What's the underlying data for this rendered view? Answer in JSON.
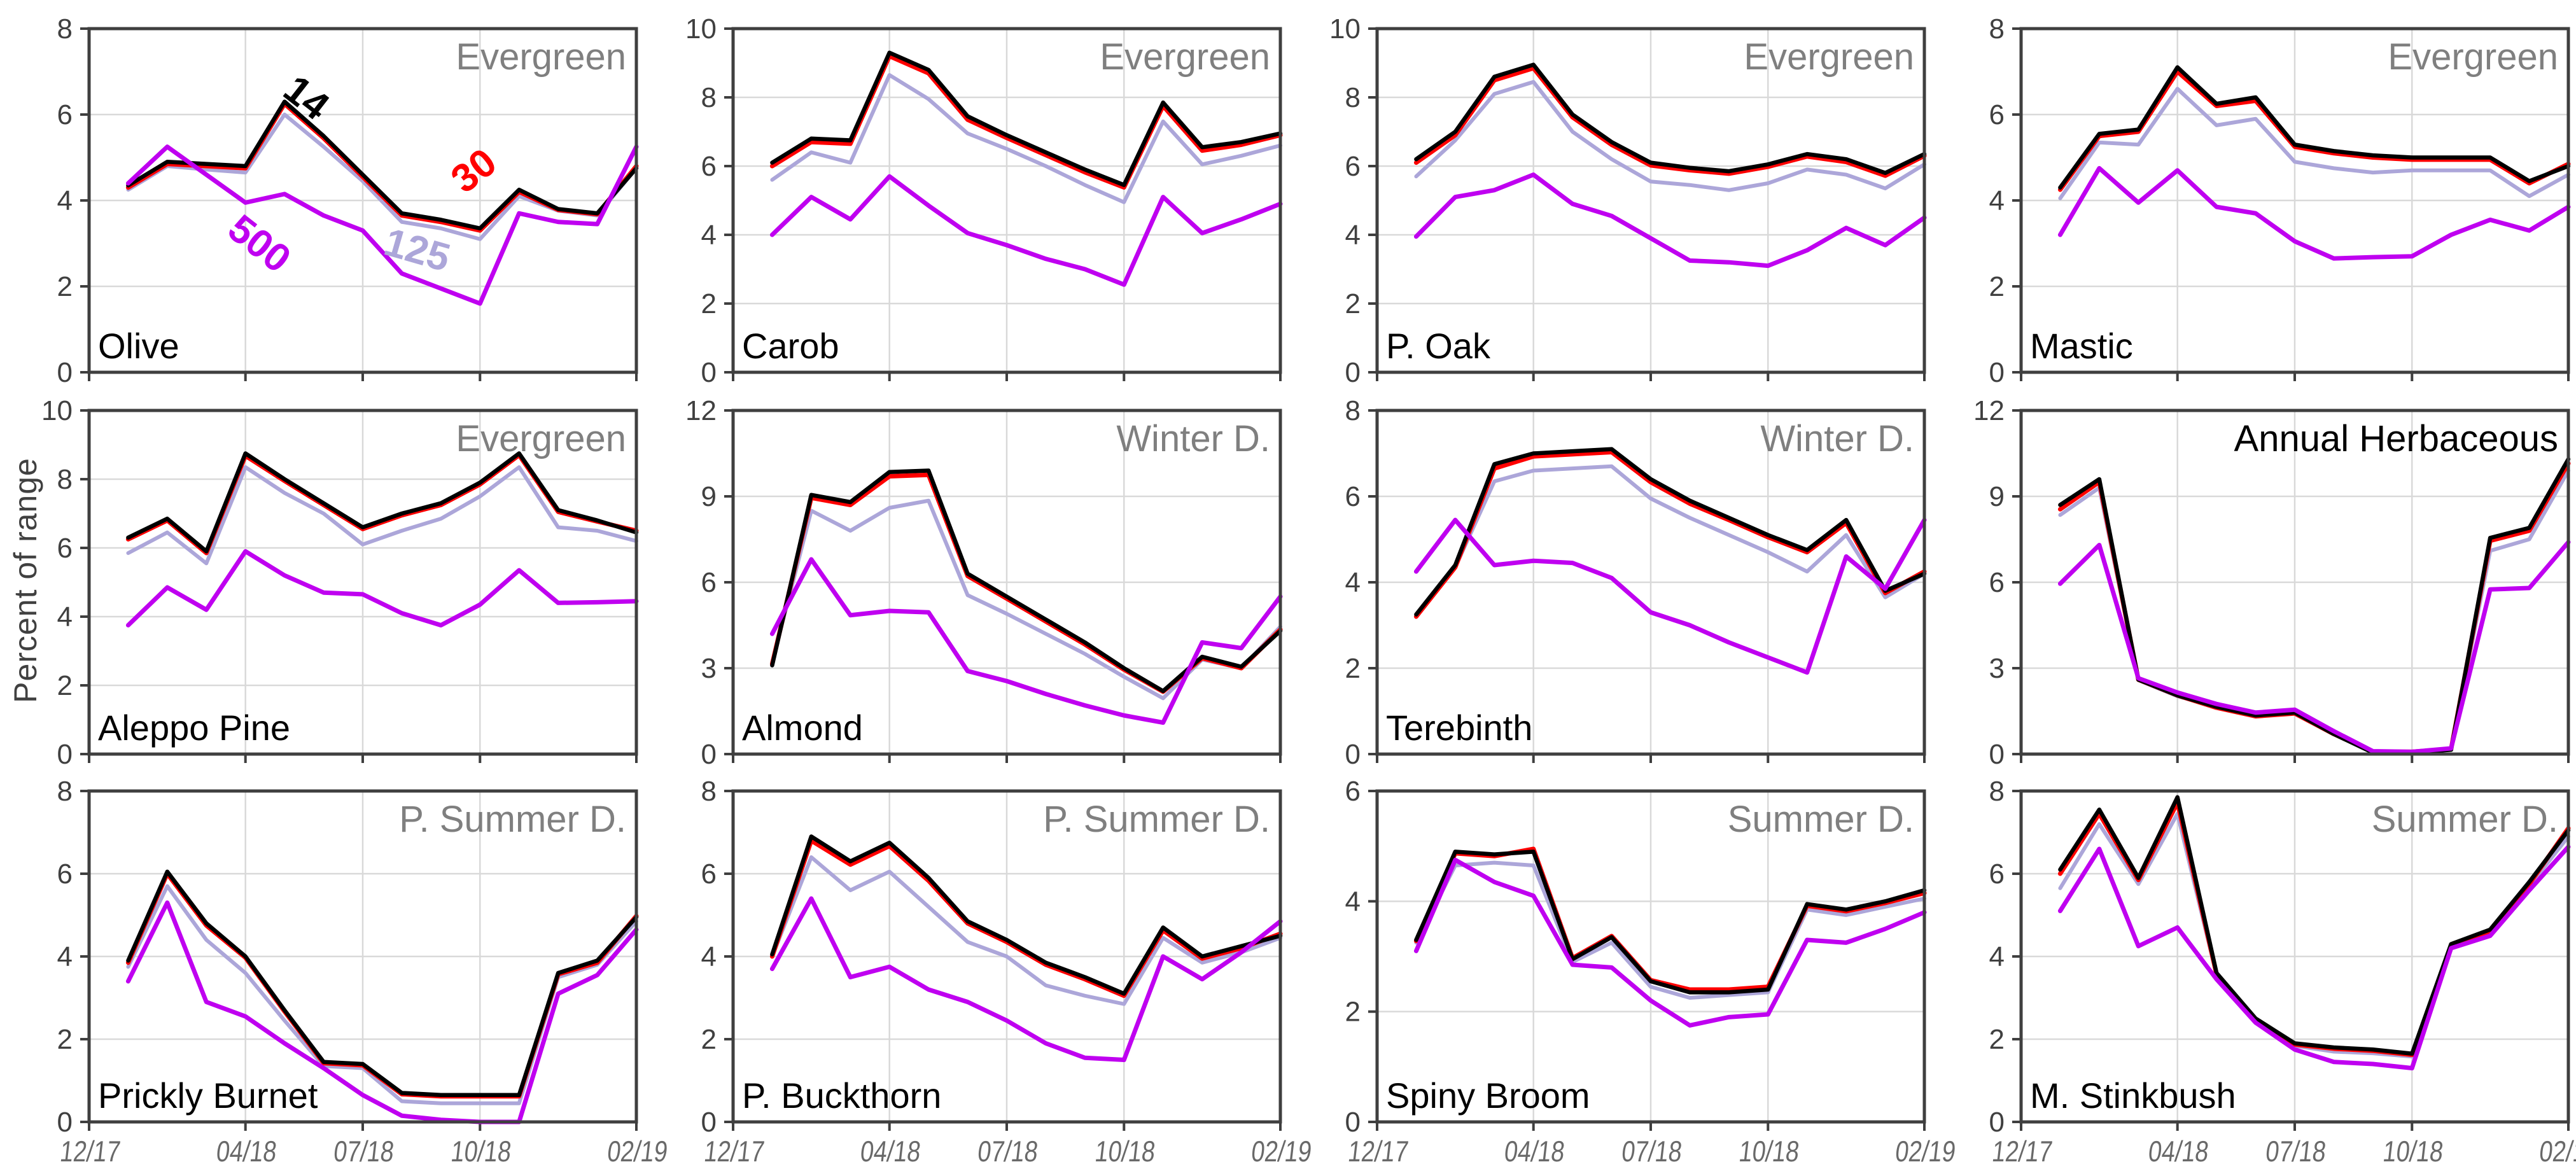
{
  "figure": {
    "ylabel": "Percent  of range"
  },
  "colors": {
    "grid": "#D9D9D9",
    "axis": "#3F3F3F",
    "y_tick_label": "#404040",
    "x_tick_label": "#696969",
    "category_label": "#7F7F7F",
    "species_label": "#000000",
    "background": "#FFFFFF"
  },
  "x_axis": {
    "tick_labels": [
      "12/17",
      "04/18",
      "07/18",
      "10/18",
      "02/19"
    ],
    "tick_months": [
      0,
      4,
      7,
      10,
      14
    ],
    "gridline_months": [
      4,
      7,
      10
    ],
    "n_months": 14
  },
  "series_meta": [
    {
      "key": "s125",
      "name": "125",
      "color": "#ACA6D9",
      "width": 6
    },
    {
      "key": "s30",
      "name": "30",
      "color": "#FF0000",
      "width": 7
    },
    {
      "key": "s14",
      "name": "14",
      "color": "#000000",
      "width": 6.5
    },
    {
      "key": "s500",
      "name": "500",
      "color": "#BF00F0",
      "width": 7
    }
  ],
  "chart_data": [
    {
      "type": "line",
      "species": "Olive",
      "slug": "olive",
      "category": "Evergreen",
      "category_color": "#7F7F7F",
      "ylim": [
        0,
        8
      ],
      "yticks": [
        0,
        2,
        4,
        6,
        8
      ],
      "series": {
        "s14": [
          4.35,
          4.9,
          4.85,
          4.8,
          6.3,
          5.5,
          4.6,
          3.7,
          3.55,
          3.35,
          4.25,
          3.8,
          3.7,
          4.75
        ],
        "s30": [
          4.3,
          4.85,
          4.8,
          4.75,
          6.25,
          5.45,
          4.55,
          3.65,
          3.5,
          3.3,
          4.2,
          3.78,
          3.68,
          4.8
        ],
        "s125": [
          4.25,
          4.8,
          4.72,
          4.65,
          6.0,
          5.25,
          4.45,
          3.5,
          3.35,
          3.1,
          4.1,
          3.76,
          3.65,
          4.75
        ],
        "s500": [
          4.4,
          5.25,
          4.6,
          3.95,
          4.15,
          3.65,
          3.3,
          2.3,
          1.95,
          1.6,
          3.7,
          3.5,
          3.45,
          5.25
        ]
      },
      "annotations": [
        {
          "text": "14",
          "color": "#000000",
          "month": 5.35,
          "value": 6.15,
          "rotate": 38,
          "size": 62
        },
        {
          "text": "30",
          "color": "#FF0000",
          "month": 10.05,
          "value": 4.45,
          "rotate": -38,
          "size": 62
        },
        {
          "text": "500",
          "color": "#BF00F0",
          "month": 4.15,
          "value": 2.75,
          "rotate": 38,
          "size": 62
        },
        {
          "text": "125",
          "color": "#ACA6D9",
          "month": 8.3,
          "value": 2.55,
          "rotate": 16,
          "size": 62
        }
      ]
    },
    {
      "type": "line",
      "species": "Carob",
      "slug": "carob",
      "category": "Evergreen",
      "category_color": "#7F7F7F",
      "ylim": [
        0,
        10
      ],
      "yticks": [
        0,
        2,
        4,
        6,
        8,
        10
      ],
      "series": {
        "s14": [
          6.1,
          6.8,
          6.75,
          9.3,
          8.8,
          7.45,
          6.9,
          6.4,
          5.9,
          5.45,
          7.85,
          6.55,
          6.7,
          6.95
        ],
        "s30": [
          6.0,
          6.7,
          6.65,
          9.2,
          8.7,
          7.35,
          6.82,
          6.32,
          5.82,
          5.38,
          7.75,
          6.45,
          6.62,
          6.9
        ],
        "s125": [
          5.6,
          6.4,
          6.1,
          8.65,
          7.95,
          6.95,
          6.5,
          6.0,
          5.45,
          4.95,
          7.3,
          6.05,
          6.3,
          6.6
        ],
        "s500": [
          4.0,
          5.1,
          4.45,
          5.7,
          4.85,
          4.05,
          3.7,
          3.3,
          3.0,
          2.55,
          5.1,
          4.05,
          4.45,
          4.9
        ]
      }
    },
    {
      "type": "line",
      "species": "P. Oak",
      "slug": "p-oak",
      "category": "Evergreen",
      "category_color": "#7F7F7F",
      "ylim": [
        0,
        10
      ],
      "yticks": [
        0,
        2,
        4,
        6,
        8,
        10
      ],
      "series": {
        "s14": [
          6.2,
          7.0,
          8.6,
          8.95,
          7.5,
          6.7,
          6.1,
          5.95,
          5.85,
          6.05,
          6.35,
          6.2,
          5.8,
          6.35
        ],
        "s30": [
          6.1,
          6.9,
          8.5,
          8.85,
          7.42,
          6.62,
          6.02,
          5.88,
          5.78,
          5.98,
          6.28,
          6.12,
          5.72,
          6.3
        ],
        "s125": [
          5.7,
          6.75,
          8.1,
          8.45,
          7.0,
          6.2,
          5.55,
          5.45,
          5.3,
          5.5,
          5.9,
          5.75,
          5.35,
          6.05
        ],
        "s500": [
          3.95,
          5.1,
          5.3,
          5.75,
          4.9,
          4.55,
          3.9,
          3.25,
          3.2,
          3.1,
          3.55,
          4.2,
          3.7,
          4.5
        ]
      }
    },
    {
      "type": "line",
      "species": "Mastic",
      "slug": "mastic",
      "category": "Evergreen",
      "category_color": "#7F7F7F",
      "ylim": [
        0,
        8
      ],
      "yticks": [
        0,
        2,
        4,
        6,
        8
      ],
      "series": {
        "s14": [
          4.3,
          5.55,
          5.65,
          7.1,
          6.25,
          6.4,
          5.3,
          5.15,
          5.05,
          5.0,
          5.0,
          5.0,
          4.45,
          4.8
        ],
        "s30": [
          4.25,
          5.5,
          5.6,
          7.0,
          6.2,
          6.32,
          5.25,
          5.1,
          5.0,
          4.95,
          4.95,
          4.95,
          4.4,
          4.85
        ],
        "s125": [
          4.05,
          5.35,
          5.3,
          6.6,
          5.75,
          5.9,
          4.9,
          4.75,
          4.65,
          4.7,
          4.7,
          4.7,
          4.1,
          4.6
        ],
        "s500": [
          3.2,
          4.75,
          3.95,
          4.7,
          3.85,
          3.7,
          3.05,
          2.65,
          2.68,
          2.7,
          3.2,
          3.55,
          3.3,
          3.85
        ]
      }
    },
    {
      "type": "line",
      "species": "Aleppo Pine",
      "slug": "aleppo-pine",
      "category": "Evergreen",
      "category_color": "#7F7F7F",
      "ylim": [
        0,
        10
      ],
      "yticks": [
        0,
        2,
        4,
        6,
        8,
        10
      ],
      "series": {
        "s14": [
          6.3,
          6.85,
          5.9,
          8.75,
          8.0,
          7.3,
          6.6,
          7.0,
          7.3,
          7.9,
          8.75,
          7.1,
          6.8,
          6.45
        ],
        "s30": [
          6.25,
          6.8,
          5.85,
          8.68,
          7.95,
          7.25,
          6.55,
          6.95,
          7.25,
          7.85,
          8.7,
          7.05,
          6.77,
          6.5
        ],
        "s125": [
          5.85,
          6.45,
          5.55,
          8.35,
          7.6,
          7.0,
          6.1,
          6.5,
          6.85,
          7.5,
          8.35,
          6.6,
          6.5,
          6.2
        ],
        "s500": [
          3.75,
          4.85,
          4.2,
          5.9,
          5.2,
          4.7,
          4.65,
          4.1,
          3.75,
          4.35,
          5.35,
          4.4,
          4.42,
          4.45
        ]
      }
    },
    {
      "type": "line",
      "species": "Almond",
      "slug": "almond",
      "category": "Winter D.",
      "category_color": "#7F7F7F",
      "ylim": [
        0,
        12
      ],
      "yticks": [
        0,
        3,
        6,
        9,
        12
      ],
      "series": {
        "s14": [
          3.1,
          9.05,
          8.8,
          9.85,
          9.9,
          6.3,
          5.5,
          4.7,
          3.9,
          3.0,
          2.2,
          3.4,
          3.05,
          4.3
        ],
        "s30": [
          3.15,
          8.95,
          8.7,
          9.7,
          9.75,
          6.22,
          5.43,
          4.63,
          3.83,
          2.95,
          2.18,
          3.35,
          3.0,
          4.35
        ],
        "s125": [
          3.2,
          8.5,
          7.8,
          8.6,
          8.85,
          5.55,
          4.9,
          4.2,
          3.5,
          2.7,
          1.95,
          3.3,
          3.0,
          4.45
        ],
        "s500": [
          4.2,
          6.8,
          4.85,
          5.0,
          4.95,
          2.9,
          2.55,
          2.1,
          1.7,
          1.35,
          1.1,
          3.9,
          3.7,
          5.5
        ]
      }
    },
    {
      "type": "line",
      "species": "Terebinth",
      "slug": "terebinth",
      "category": "Winter D.",
      "category_color": "#7F7F7F",
      "ylim": [
        0,
        8
      ],
      "yticks": [
        0,
        2,
        4,
        6,
        8
      ],
      "series": {
        "s14": [
          3.25,
          4.4,
          6.75,
          7.0,
          7.05,
          7.1,
          6.4,
          5.9,
          5.5,
          5.1,
          4.75,
          5.45,
          3.8,
          4.2
        ],
        "s30": [
          3.2,
          4.35,
          6.65,
          6.93,
          6.98,
          7.03,
          6.33,
          5.83,
          5.45,
          5.05,
          4.7,
          5.38,
          3.75,
          4.25
        ],
        "s125": [
          3.2,
          4.35,
          6.35,
          6.6,
          6.65,
          6.7,
          5.95,
          5.5,
          5.1,
          4.7,
          4.25,
          5.1,
          3.65,
          4.2
        ],
        "s500": [
          4.25,
          5.45,
          4.4,
          4.5,
          4.45,
          4.1,
          3.3,
          3.0,
          2.6,
          2.25,
          1.9,
          4.6,
          3.85,
          5.45
        ]
      }
    },
    {
      "type": "line",
      "species": "",
      "slug": "annual-herbaceous",
      "category": "Annual Herbaceous",
      "category_color": "#000000",
      "ylim": [
        0,
        12
      ],
      "yticks": [
        0,
        3,
        6,
        9,
        12
      ],
      "series": {
        "s14": [
          8.7,
          9.6,
          2.6,
          2.05,
          1.65,
          1.35,
          1.45,
          0.7,
          0.05,
          0.05,
          0.15,
          7.55,
          7.9,
          10.3
        ],
        "s30": [
          8.55,
          9.5,
          2.6,
          2.05,
          1.62,
          1.32,
          1.42,
          0.7,
          0.08,
          0.08,
          0.18,
          7.45,
          7.8,
          10.15
        ],
        "s125": [
          8.35,
          9.3,
          2.58,
          2.02,
          1.65,
          1.35,
          1.45,
          0.72,
          0.05,
          0.05,
          0.15,
          7.1,
          7.5,
          9.9
        ],
        "s500": [
          5.95,
          7.3,
          2.65,
          2.15,
          1.75,
          1.45,
          1.55,
          0.8,
          0.1,
          0.08,
          0.2,
          5.75,
          5.8,
          7.4
        ]
      }
    },
    {
      "type": "line",
      "species": "Prickly Burnet",
      "slug": "prickly-burnet",
      "category": "P. Summer D.",
      "category_color": "#7F7F7F",
      "ylim": [
        0,
        8
      ],
      "yticks": [
        0,
        2,
        4,
        6,
        8
      ],
      "series": {
        "s14": [
          3.9,
          6.05,
          4.8,
          4.0,
          2.7,
          1.45,
          1.4,
          0.7,
          0.65,
          0.65,
          0.65,
          3.6,
          3.9,
          4.95
        ],
        "s30": [
          3.85,
          6.0,
          4.75,
          3.97,
          2.67,
          1.42,
          1.37,
          0.67,
          0.62,
          0.62,
          0.62,
          3.57,
          3.85,
          4.98
        ],
        "s125": [
          3.75,
          5.7,
          4.4,
          3.6,
          2.45,
          1.35,
          1.3,
          0.5,
          0.45,
          0.45,
          0.45,
          3.5,
          3.8,
          4.85
        ],
        "s500": [
          3.4,
          5.3,
          2.9,
          2.55,
          1.9,
          1.3,
          0.65,
          0.15,
          0.05,
          0.0,
          0.0,
          3.1,
          3.55,
          4.65
        ]
      }
    },
    {
      "type": "line",
      "species": "P. Buckthorn",
      "slug": "p-buckthorn",
      "category": "P. Summer D.",
      "category_color": "#7F7F7F",
      "ylim": [
        0,
        8
      ],
      "yticks": [
        0,
        2,
        4,
        6,
        8
      ],
      "series": {
        "s14": [
          4.05,
          6.9,
          6.3,
          6.75,
          5.9,
          4.85,
          4.4,
          3.85,
          3.5,
          3.1,
          4.7,
          4.0,
          4.25,
          4.5
        ],
        "s30": [
          4.0,
          6.8,
          6.22,
          6.67,
          5.83,
          4.8,
          4.35,
          3.8,
          3.45,
          3.05,
          4.63,
          3.95,
          4.2,
          4.55
        ],
        "s125": [
          4.0,
          6.4,
          5.6,
          6.05,
          5.2,
          4.35,
          4.0,
          3.3,
          3.05,
          2.85,
          4.45,
          3.85,
          4.1,
          4.45
        ],
        "s500": [
          3.7,
          5.4,
          3.5,
          3.75,
          3.2,
          2.9,
          2.45,
          1.9,
          1.55,
          1.5,
          4.0,
          3.45,
          4.1,
          4.85
        ]
      }
    },
    {
      "type": "line",
      "species": "Spiny Broom",
      "slug": "spiny-broom",
      "category": "Summer D.",
      "category_color": "#7F7F7F",
      "ylim": [
        0,
        6
      ],
      "yticks": [
        0,
        2,
        4,
        6
      ],
      "series": {
        "s14": [
          3.3,
          4.9,
          4.85,
          4.9,
          2.95,
          3.35,
          2.55,
          2.35,
          2.35,
          2.4,
          3.95,
          3.85,
          4.0,
          4.2
        ],
        "s30": [
          3.28,
          4.87,
          4.82,
          4.95,
          2.97,
          3.37,
          2.57,
          2.4,
          2.4,
          2.45,
          3.92,
          3.82,
          3.97,
          4.15
        ],
        "s125": [
          3.25,
          4.65,
          4.7,
          4.65,
          2.9,
          3.25,
          2.45,
          2.25,
          2.3,
          2.35,
          3.85,
          3.75,
          3.9,
          4.05
        ],
        "s500": [
          3.1,
          4.75,
          4.35,
          4.1,
          2.85,
          2.8,
          2.2,
          1.75,
          1.9,
          1.95,
          3.3,
          3.25,
          3.5,
          3.8
        ]
      }
    },
    {
      "type": "line",
      "species": "M. Stinkbush",
      "slug": "m-stinkbush",
      "category": "Summer D.",
      "category_color": "#7F7F7F",
      "ylim": [
        0,
        8
      ],
      "yticks": [
        0,
        2,
        4,
        6,
        8
      ],
      "series": {
        "s14": [
          6.1,
          7.55,
          5.9,
          7.85,
          3.6,
          2.5,
          1.9,
          1.8,
          1.75,
          1.65,
          4.3,
          4.65,
          5.8,
          7.05
        ],
        "s30": [
          6.0,
          7.45,
          5.85,
          7.72,
          3.57,
          2.47,
          1.87,
          1.77,
          1.72,
          1.62,
          4.27,
          4.6,
          5.75,
          7.1
        ],
        "s125": [
          5.65,
          7.2,
          5.75,
          7.45,
          3.55,
          2.44,
          1.84,
          1.7,
          1.66,
          1.58,
          4.24,
          4.55,
          5.7,
          6.9
        ],
        "s500": [
          5.1,
          6.6,
          4.25,
          4.7,
          3.45,
          2.4,
          1.75,
          1.45,
          1.4,
          1.3,
          4.2,
          4.5,
          5.6,
          6.65
        ]
      }
    }
  ]
}
